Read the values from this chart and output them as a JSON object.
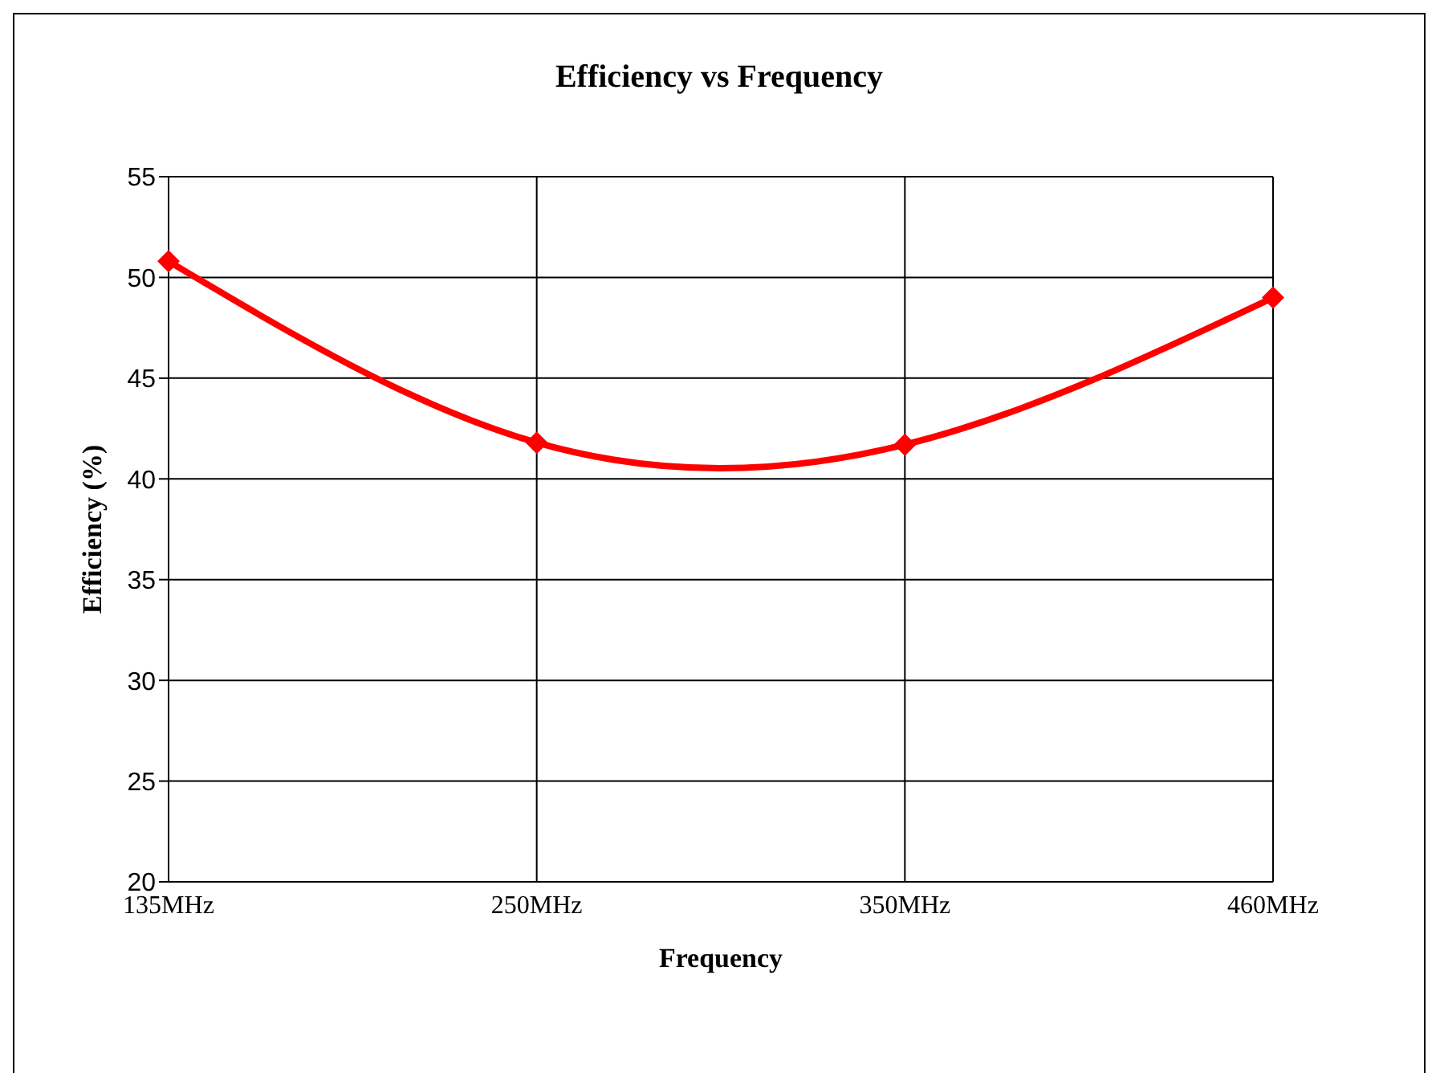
{
  "chart_data": {
    "type": "line",
    "title": "Efficiency vs Frequency",
    "xlabel": "Frequency",
    "ylabel": "Efficiency (%)",
    "categories": [
      "135MHz",
      "250MHz",
      "350MHz",
      "460MHz"
    ],
    "series": [
      {
        "color": "#ff0000",
        "values": [
          50.8,
          41.8,
          41.7,
          49.0
        ]
      }
    ],
    "ylim": [
      20,
      55
    ],
    "yticks": [
      20,
      25,
      30,
      35,
      40,
      45,
      50,
      55
    ],
    "grid": true,
    "legend": false,
    "marker": "diamond",
    "line_style": "solid"
  }
}
